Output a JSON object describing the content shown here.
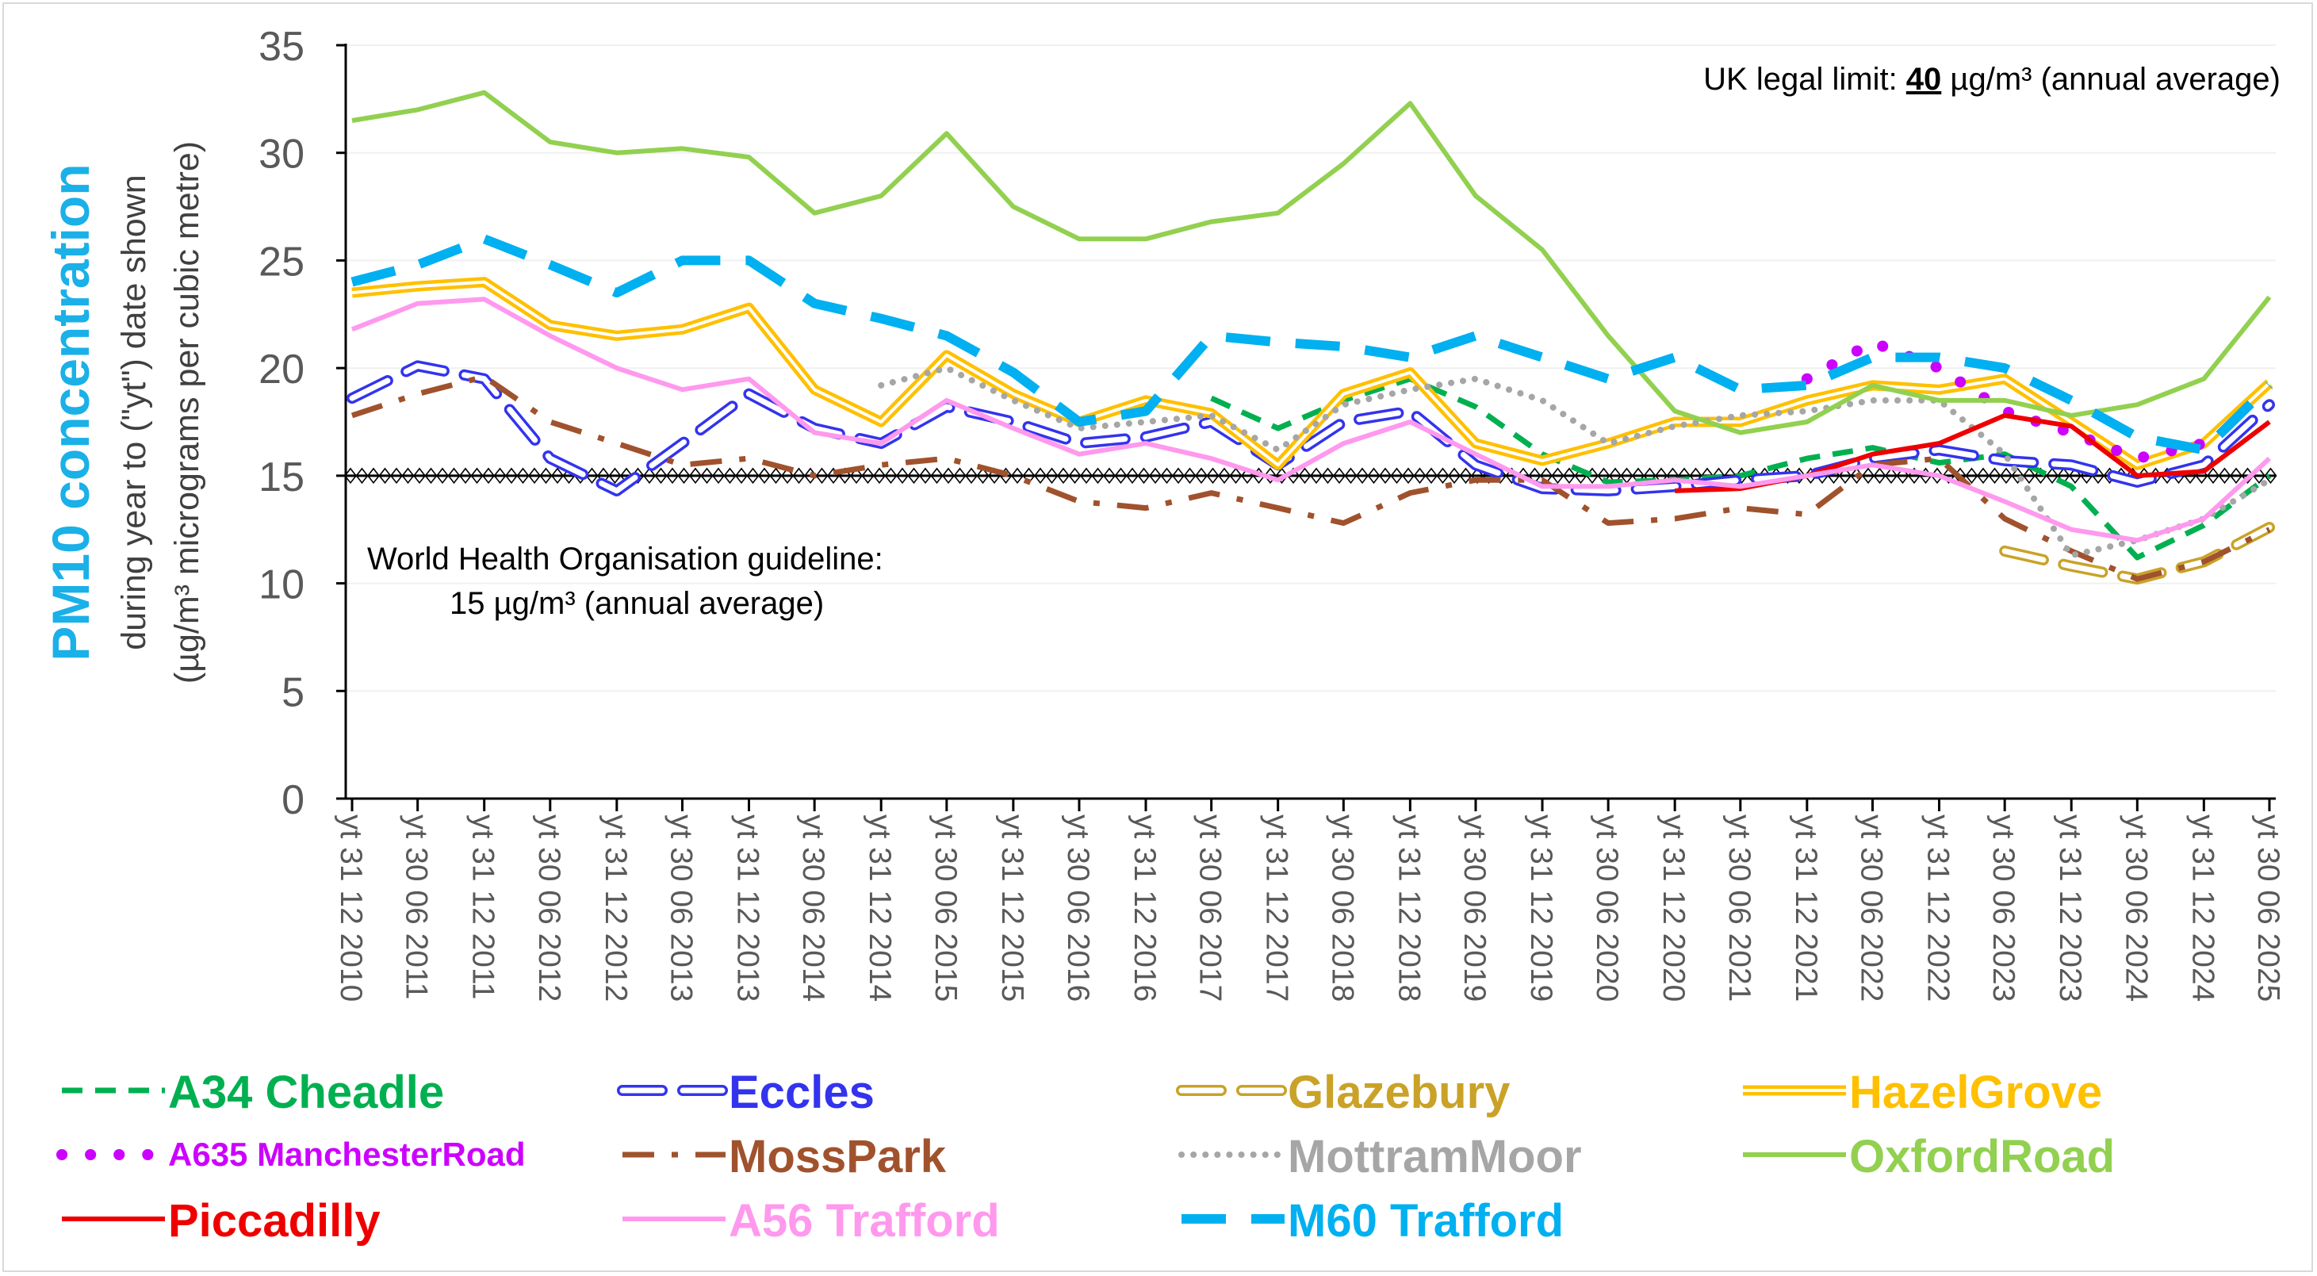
{
  "chart_data": {
    "type": "line",
    "ytitle_main": "PM10 concentration",
    "ytitle_sub1": "during year to (\"yt\") date shown",
    "ytitle_sub2": "(µg/m³ micrograms per cubic metre)",
    "ylim": [
      0,
      35
    ],
    "yticks": [
      0,
      5,
      10,
      15,
      20,
      25,
      30,
      35
    ],
    "x_tick_labels": [
      "yt 31 12 2010",
      "yt 30 06 2011",
      "yt 31 12 2011",
      "yt 30 06 2012",
      "yt 31 12 2012",
      "yt 30 06 2013",
      "yt 31 12 2013",
      "yt 30 06 2014",
      "yt 31 12 2014",
      "yt 30 06 2015",
      "yt 31 12 2015",
      "yt 30 06 2016",
      "yt 31 12 2016",
      "yt 30 06 2017",
      "yt 31 12 2017",
      "yt 30 06 2018",
      "yt 31 12 2018",
      "yt 30 06 2019",
      "yt 31 12 2019",
      "yt 30 06 2020",
      "yt 31 12 2020",
      "yt 30 06 2021",
      "yt 31 12 2021",
      "yt 30 06 2022",
      "yt 31 12 2022",
      "yt 30 06 2023",
      "yt 31 12 2023",
      "yt 30 06 2024",
      "yt 31 12 2024",
      "yt 30 06 2025"
    ],
    "x_dates": [
      "2010-12-31",
      "2011-06-30",
      "2011-12-31",
      "2012-06-30",
      "2012-12-31",
      "2013-06-30",
      "2013-12-31",
      "2014-06-30",
      "2014-12-31",
      "2015-06-30",
      "2015-12-31",
      "2016-06-30",
      "2016-12-31",
      "2017-06-30",
      "2017-12-31",
      "2018-06-30",
      "2018-12-31",
      "2019-06-30",
      "2019-12-31",
      "2020-06-30",
      "2020-12-31",
      "2021-06-30",
      "2021-12-31",
      "2022-06-30",
      "2022-12-31",
      "2023-06-30",
      "2023-12-31",
      "2024-06-30",
      "2024-12-31",
      "2025-06-30"
    ],
    "annotation_limit_prefix": "UK legal limit: ",
    "annotation_limit_value": "40",
    "annotation_limit_suffix": " µg/m³ (annual average)",
    "annotation_who_line1": "World Health Organisation guideline:",
    "annotation_who_line2": "15 µg/m³ (annual average)",
    "who_guideline": 15,
    "grid": true,
    "legend_position": "bottom",
    "series": [
      {
        "name": "A34 Cheadle",
        "color": "#00b050",
        "style": "dash",
        "x": [
          "2017-06-30",
          "2017-12-31",
          "2018-06-30",
          "2018-12-31",
          "2019-06-30",
          "2019-12-31",
          "2020-06-30",
          "2020-12-31",
          "2021-06-30",
          "2021-12-31",
          "2022-06-30",
          "2022-12-31",
          "2023-06-30",
          "2023-12-31",
          "2024-06-30",
          "2024-12-31",
          "2025-06-30"
        ],
        "values": [
          18.6,
          17.2,
          18.5,
          19.5,
          18.2,
          16.0,
          14.7,
          14.8,
          15.0,
          15.8,
          16.3,
          15.6,
          16.0,
          14.5,
          11.2,
          12.7,
          15.0
        ]
      },
      {
        "name": "Eccles",
        "color": "#3333ee",
        "style": "outline-dash",
        "x": [
          "2010-12-31",
          "2011-06-30",
          "2011-12-31",
          "2012-06-30",
          "2012-12-31",
          "2013-06-30",
          "2013-12-31",
          "2014-06-30",
          "2014-12-31",
          "2015-06-30",
          "2015-12-31",
          "2016-06-30",
          "2016-12-31",
          "2017-06-30",
          "2017-12-31",
          "2018-06-30",
          "2018-12-31",
          "2019-06-30",
          "2019-12-31",
          "2020-06-30",
          "2020-12-31",
          "2021-06-30",
          "2021-12-31",
          "2022-06-30",
          "2022-12-31",
          "2023-06-30",
          "2023-12-31",
          "2024-06-30",
          "2024-12-31",
          "2025-06-30"
        ],
        "values": [
          18.6,
          20.1,
          19.5,
          15.8,
          14.3,
          16.5,
          18.8,
          17.2,
          16.5,
          18.2,
          17.5,
          16.5,
          16.8,
          17.5,
          15.5,
          17.5,
          18.0,
          15.5,
          14.4,
          14.3,
          14.5,
          14.8,
          15.0,
          15.8,
          16.2,
          15.7,
          15.5,
          14.7,
          15.5,
          18.3
        ]
      },
      {
        "name": "Glazebury",
        "color": "#c9a227",
        "style": "outline-dash",
        "x": [
          "2023-06-30",
          "2023-12-31",
          "2024-06-30",
          "2024-12-31",
          "2025-06-30"
        ],
        "values": [
          11.5,
          10.8,
          10.2,
          11.0,
          12.6
        ]
      },
      {
        "name": "HazelGrove",
        "color": "#ffc000",
        "style": "double",
        "x": [
          "2010-12-31",
          "2011-06-30",
          "2011-12-31",
          "2012-06-30",
          "2012-12-31",
          "2013-06-30",
          "2013-12-31",
          "2014-06-30",
          "2014-12-31",
          "2015-06-30",
          "2015-12-31",
          "2016-06-30",
          "2016-12-31",
          "2017-06-30",
          "2017-12-31",
          "2018-06-30",
          "2018-12-31",
          "2019-06-30",
          "2019-12-31",
          "2020-06-30",
          "2020-12-31",
          "2021-06-30",
          "2021-12-31",
          "2022-06-30",
          "2022-12-31",
          "2023-06-30",
          "2023-12-31",
          "2024-06-30",
          "2024-12-31",
          "2025-06-30"
        ],
        "values": [
          23.5,
          23.8,
          24.0,
          22.0,
          21.5,
          21.8,
          22.8,
          19.0,
          17.5,
          20.6,
          18.8,
          17.5,
          18.5,
          17.9,
          15.5,
          18.8,
          19.8,
          16.5,
          15.7,
          16.5,
          17.5,
          17.5,
          18.5,
          19.2,
          19.0,
          19.5,
          17.5,
          15.5,
          16.5,
          19.3
        ]
      },
      {
        "name": "A635 ManchesterRoad",
        "color": "#cc00ff",
        "style": "dots",
        "x": [
          "2021-12-31",
          "2022-06-30",
          "2022-12-31",
          "2023-06-30",
          "2023-12-31",
          "2024-06-30",
          "2024-12-31"
        ],
        "values": [
          19.5,
          21.2,
          20.0,
          18.0,
          17.0,
          15.8,
          16.5
        ]
      },
      {
        "name": "MossPark",
        "color": "#a0522d",
        "style": "dashdot",
        "x": [
          "2010-12-31",
          "2011-06-30",
          "2011-12-31",
          "2012-06-30",
          "2012-12-31",
          "2013-06-30",
          "2013-12-31",
          "2014-06-30",
          "2014-12-31",
          "2015-06-30",
          "2015-12-31",
          "2016-06-30",
          "2016-12-31",
          "2017-06-30",
          "2017-12-31",
          "2018-06-30",
          "2018-12-31",
          "2019-06-30",
          "2019-12-31",
          "2020-06-30",
          "2020-12-31",
          "2021-06-30",
          "2021-12-31",
          "2022-06-30",
          "2022-12-31",
          "2023-06-30",
          "2023-12-31",
          "2024-06-30",
          "2024-12-31",
          "2025-06-30"
        ],
        "values": [
          17.8,
          18.8,
          19.6,
          17.5,
          16.5,
          15.5,
          15.8,
          15.0,
          15.5,
          15.8,
          15.0,
          13.8,
          13.5,
          14.2,
          13.5,
          12.8,
          14.2,
          14.8,
          14.8,
          12.8,
          13.0,
          13.5,
          13.2,
          15.5,
          15.8,
          13.0,
          11.5,
          10.2,
          11.0,
          12.5
        ]
      },
      {
        "name": "MottramMoor",
        "color": "#a6a6a6",
        "style": "dotted",
        "x": [
          "2014-12-31",
          "2015-06-30",
          "2015-12-31",
          "2016-06-30",
          "2016-12-31",
          "2017-06-30",
          "2017-12-31",
          "2018-06-30",
          "2018-12-31",
          "2019-06-30",
          "2019-12-31",
          "2020-06-30",
          "2020-12-31",
          "2021-06-30",
          "2021-12-31",
          "2022-06-30",
          "2022-12-31",
          "2023-06-30",
          "2023-12-31",
          "2024-06-30",
          "2024-12-31",
          "2025-06-30"
        ],
        "values": [
          19.2,
          20.0,
          18.5,
          17.2,
          17.5,
          17.8,
          16.2,
          18.3,
          19.0,
          19.5,
          18.5,
          16.5,
          17.3,
          17.8,
          18.0,
          18.5,
          18.5,
          16.0,
          11.3,
          12.0,
          13.0,
          14.8
        ]
      },
      {
        "name": "OxfordRoad",
        "color": "#92d050",
        "style": "solid",
        "x": [
          "2010-12-31",
          "2011-06-30",
          "2011-12-31",
          "2012-06-30",
          "2012-12-31",
          "2013-06-30",
          "2013-12-31",
          "2014-06-30",
          "2014-12-31",
          "2015-06-30",
          "2015-12-31",
          "2016-06-30",
          "2016-12-31",
          "2017-06-30",
          "2017-12-31",
          "2018-06-30",
          "2018-12-31",
          "2019-06-30",
          "2019-12-31",
          "2020-06-30",
          "2020-12-31",
          "2021-06-30",
          "2021-12-31",
          "2022-06-30",
          "2022-12-31",
          "2023-06-30",
          "2023-12-31",
          "2024-06-30",
          "2024-12-31",
          "2025-06-30"
        ],
        "values": [
          31.5,
          32.0,
          32.8,
          30.5,
          30.0,
          30.2,
          29.8,
          27.2,
          28.0,
          30.9,
          27.5,
          26.0,
          26.0,
          26.8,
          27.2,
          29.5,
          32.3,
          28.0,
          25.5,
          21.5,
          18.0,
          17.0,
          17.5,
          19.2,
          18.5,
          18.5,
          17.8,
          18.3,
          19.5,
          23.3
        ]
      },
      {
        "name": "Piccadilly",
        "color": "#ee0000",
        "style": "solid",
        "x": [
          "2020-12-31",
          "2021-06-30",
          "2021-12-31",
          "2022-06-30",
          "2022-12-31",
          "2023-06-30",
          "2023-12-31",
          "2024-06-30",
          "2024-12-31",
          "2025-06-30"
        ],
        "values": [
          14.3,
          14.4,
          15.0,
          16.0,
          16.5,
          17.8,
          17.3,
          15.0,
          15.2,
          17.5
        ]
      },
      {
        "name": "A56 Trafford",
        "color": "#ff99ee",
        "style": "solid",
        "x": [
          "2010-12-31",
          "2011-06-30",
          "2011-12-31",
          "2012-06-30",
          "2012-12-31",
          "2013-06-30",
          "2013-12-31",
          "2014-06-30",
          "2014-12-31",
          "2015-06-30",
          "2015-12-31",
          "2016-06-30",
          "2016-12-31",
          "2017-06-30",
          "2017-12-31",
          "2018-06-30",
          "2018-12-31",
          "2019-06-30",
          "2019-12-31",
          "2020-06-30",
          "2020-12-31",
          "2021-06-30",
          "2021-12-31",
          "2022-06-30",
          "2022-12-31",
          "2023-06-30",
          "2023-12-31",
          "2024-06-30",
          "2024-12-31",
          "2025-06-30"
        ],
        "values": [
          21.8,
          23.0,
          23.2,
          21.5,
          20.0,
          19.0,
          19.5,
          17.0,
          16.5,
          18.5,
          17.2,
          16.0,
          16.5,
          15.8,
          14.8,
          16.5,
          17.5,
          16.0,
          14.5,
          14.5,
          14.8,
          14.5,
          15.0,
          15.5,
          15.0,
          13.8,
          12.5,
          12.0,
          13.0,
          15.8
        ]
      },
      {
        "name": "M60 Trafford",
        "color": "#00b0f0",
        "style": "long-dash",
        "x": [
          "2010-12-31",
          "2011-06-30",
          "2011-12-31",
          "2012-06-30",
          "2012-12-31",
          "2013-06-30",
          "2013-12-31",
          "2014-06-30",
          "2014-12-31",
          "2015-06-30",
          "2015-12-31",
          "2016-06-30",
          "2016-12-31",
          "2017-06-30",
          "2017-12-31",
          "2018-06-30",
          "2018-12-31",
          "2019-06-30",
          "2019-12-31",
          "2020-06-30",
          "2020-12-31",
          "2021-06-30",
          "2021-12-31",
          "2022-06-30",
          "2022-12-31",
          "2023-06-30",
          "2023-12-31",
          "2024-06-30",
          "2024-12-31",
          "2025-06-30"
        ],
        "values": [
          24.0,
          24.8,
          26.0,
          24.8,
          23.5,
          25.0,
          25.0,
          23.0,
          22.3,
          21.5,
          19.8,
          17.5,
          18.0,
          21.5,
          21.2,
          21.0,
          20.5,
          21.5,
          20.5,
          19.5,
          20.5,
          19.0,
          19.2,
          20.5,
          20.5,
          20.0,
          18.5,
          16.8,
          16.2,
          19.2
        ]
      }
    ]
  }
}
